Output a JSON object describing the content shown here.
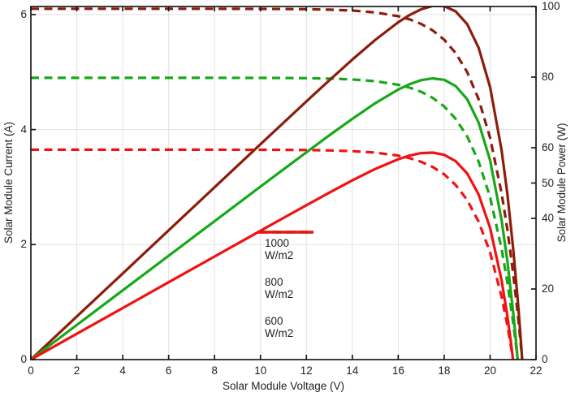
{
  "chart_data": {
    "type": "line",
    "title": "",
    "xlabel": "Solar Module Voltage (V)",
    "ylabel_left": "Solar Module Current (A)",
    "ylabel_right": "Solar Module Power (W)",
    "xlim": [
      0,
      22
    ],
    "ylim_left": [
      0,
      6.14
    ],
    "ylim_right": [
      0,
      100
    ],
    "xticks": [
      0,
      2,
      4,
      6,
      8,
      10,
      12,
      14,
      16,
      18,
      20,
      22
    ],
    "yticks_left": [
      0,
      2,
      4,
      6
    ],
    "yticks_right": [
      0,
      20,
      40,
      50,
      60,
      80,
      100
    ],
    "grid": true,
    "legend_position": "inside-lower-center",
    "line_styles": {
      "power_curves": "solid",
      "current_curves": "dashed"
    },
    "series": [
      {
        "irradiance": "1000",
        "unit": "W/m2",
        "name": "1000 W/m2",
        "color": "#8C1D0C",
        "isc_A": 6.1,
        "voc_V": 21.4,
        "pmax_W": 100.2,
        "v": [
          0,
          2,
          4,
          6,
          8,
          10,
          11,
          12,
          13,
          14,
          15,
          16,
          16.5,
          17,
          17.5,
          18,
          18.5,
          19,
          19.5,
          20,
          20.5,
          20.75,
          21,
          21.2,
          21.3,
          21.4
        ],
        "current_A": [
          6.1,
          6.1,
          6.1,
          6.1,
          6.1,
          6.098,
          6.096,
          6.093,
          6.085,
          6.069,
          6.037,
          5.971,
          5.916,
          5.836,
          5.724,
          5.562,
          5.331,
          5.001,
          4.53,
          3.856,
          2.893,
          2.265,
          1.516,
          0.812,
          0.42,
          0
        ],
        "power_W": [
          0,
          12.2,
          24.4,
          36.6,
          48.8,
          60.98,
          67.06,
          73.12,
          79.11,
          84.97,
          90.56,
          95.54,
          97.61,
          99.21,
          100.17,
          100.12,
          98.62,
          95.02,
          88.34,
          77.12,
          59.31,
          47.0,
          31.84,
          17.21,
          8.95,
          0
        ]
      },
      {
        "irradiance": "800",
        "unit": "W/m2",
        "name": "800 W/m2",
        "color": "#17A817",
        "isc_A": 4.9,
        "voc_V": 21.2,
        "pmax_W": 79.7,
        "v": [
          0,
          2,
          4,
          6,
          8,
          10,
          11,
          12,
          13,
          14,
          15,
          16,
          16.5,
          17,
          17.5,
          18,
          18.5,
          19,
          19.5,
          20,
          20.5,
          20.75,
          21,
          21.1,
          21.2
        ],
        "current_A": [
          4.9,
          4.9,
          4.9,
          4.9,
          4.9,
          4.898,
          4.897,
          4.893,
          4.886,
          4.871,
          4.841,
          4.78,
          4.729,
          4.656,
          4.551,
          4.402,
          4.188,
          3.881,
          3.444,
          2.82,
          1.928,
          1.347,
          0.652,
          0.338,
          0
        ],
        "power_W": [
          0,
          9.8,
          19.6,
          29.4,
          39.2,
          48.98,
          53.87,
          58.72,
          63.52,
          68.19,
          72.61,
          76.48,
          78.03,
          79.15,
          79.64,
          79.24,
          77.48,
          73.74,
          67.16,
          56.4,
          39.52,
          27.95,
          13.69,
          7.13,
          0
        ]
      },
      {
        "irradiance": "600",
        "unit": "W/m2",
        "name": "600 W/m2",
        "color": "#F01212",
        "isc_A": 3.65,
        "voc_V": 21.0,
        "pmax_W": 58.7,
        "v": [
          0,
          2,
          4,
          6,
          8,
          10,
          11,
          12,
          13,
          14,
          15,
          16,
          16.5,
          17,
          17.5,
          18,
          18.5,
          19,
          19.5,
          20,
          20.5,
          20.75,
          20.9,
          21
        ],
        "current_A": [
          3.65,
          3.65,
          3.65,
          3.65,
          3.65,
          3.649,
          3.647,
          3.644,
          3.638,
          3.625,
          3.6,
          3.547,
          3.503,
          3.44,
          3.35,
          3.222,
          3.038,
          2.776,
          2.399,
          1.863,
          1.096,
          0.597,
          0.251,
          0
        ],
        "power_W": [
          0,
          7.3,
          14.6,
          21.9,
          29.2,
          36.49,
          40.12,
          43.73,
          47.29,
          50.75,
          54.0,
          56.75,
          57.8,
          58.48,
          58.63,
          57.99,
          56.2,
          52.74,
          46.79,
          37.26,
          22.47,
          12.39,
          5.25,
          0
        ]
      }
    ]
  }
}
